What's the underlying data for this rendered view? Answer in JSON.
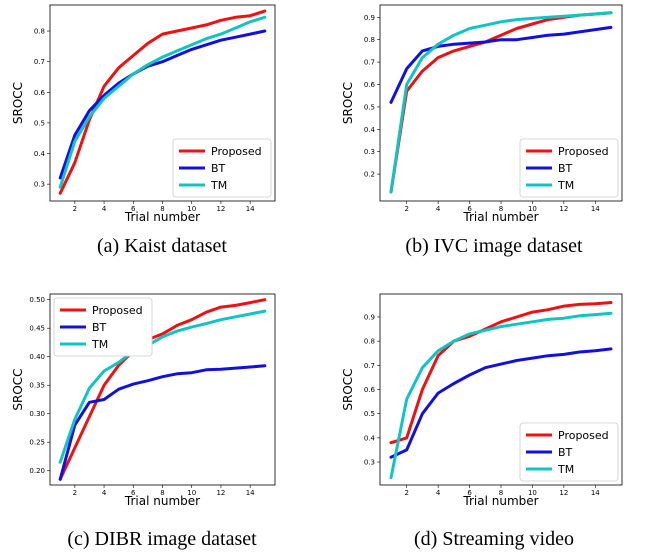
{
  "chart_data": [
    {
      "type": "line",
      "caption": "(a) Kaist dataset",
      "xlabel": "Trial number",
      "ylabel": "SROCC",
      "xlim": [
        0.3,
        15.7
      ],
      "ylim": [
        0.245,
        0.885
      ],
      "xticks": [
        2,
        4,
        6,
        8,
        10,
        12,
        14
      ],
      "yticks": [
        0.3,
        0.4,
        0.5,
        0.6,
        0.7,
        0.8
      ],
      "x": [
        1,
        2,
        3,
        4,
        5,
        6,
        7,
        8,
        9,
        10,
        11,
        12,
        13,
        14,
        15
      ],
      "legend_position": "lower-right",
      "series": [
        {
          "name": "Proposed",
          "color": "#ee1111",
          "values": [
            0.27,
            0.37,
            0.51,
            0.62,
            0.68,
            0.72,
            0.76,
            0.79,
            0.8,
            0.81,
            0.82,
            0.835,
            0.845,
            0.85,
            0.865
          ]
        },
        {
          "name": "BT",
          "color": "#1111dd",
          "values": [
            0.32,
            0.46,
            0.54,
            0.59,
            0.63,
            0.66,
            0.685,
            0.7,
            0.72,
            0.74,
            0.755,
            0.77,
            0.78,
            0.79,
            0.8
          ]
        },
        {
          "name": "TM",
          "color": "#11c4c4",
          "values": [
            0.29,
            0.44,
            0.52,
            0.58,
            0.62,
            0.66,
            0.69,
            0.715,
            0.735,
            0.755,
            0.775,
            0.79,
            0.81,
            0.83,
            0.845
          ]
        }
      ]
    },
    {
      "type": "line",
      "caption": "(b) IVC image dataset",
      "xlabel": "Trial number",
      "ylabel": "SROCC",
      "xlim": [
        0.3,
        15.7
      ],
      "ylim": [
        0.08,
        0.955
      ],
      "xticks": [
        2,
        4,
        6,
        8,
        10,
        12,
        14
      ],
      "yticks": [
        0.2,
        0.3,
        0.4,
        0.5,
        0.6,
        0.7,
        0.8,
        0.9
      ],
      "x": [
        1,
        2,
        3,
        4,
        5,
        6,
        7,
        8,
        9,
        10,
        11,
        12,
        13,
        14,
        15
      ],
      "legend_position": "lower-right",
      "series": [
        {
          "name": "Proposed",
          "color": "#ee1111",
          "values": [
            0.12,
            0.57,
            0.66,
            0.72,
            0.75,
            0.77,
            0.79,
            0.82,
            0.85,
            0.87,
            0.89,
            0.9,
            0.91,
            0.915,
            0.92
          ]
        },
        {
          "name": "BT",
          "color": "#1111dd",
          "values": [
            0.52,
            0.67,
            0.75,
            0.77,
            0.78,
            0.785,
            0.79,
            0.8,
            0.8,
            0.81,
            0.82,
            0.825,
            0.835,
            0.845,
            0.855
          ]
        },
        {
          "name": "TM",
          "color": "#11c4c4",
          "values": [
            0.12,
            0.6,
            0.72,
            0.78,
            0.82,
            0.85,
            0.865,
            0.88,
            0.89,
            0.895,
            0.9,
            0.905,
            0.91,
            0.915,
            0.92
          ]
        }
      ]
    },
    {
      "type": "line",
      "caption": "(c) DIBR image dataset",
      "xlabel": "Trial number",
      "ylabel": "SROCC",
      "xlim": [
        0.3,
        15.7
      ],
      "ylim": [
        0.175,
        0.51
      ],
      "xticks": [
        2,
        4,
        6,
        8,
        10,
        12,
        14
      ],
      "yticks": [
        0.2,
        0.25,
        0.3,
        0.35,
        0.4,
        0.45,
        0.5
      ],
      "x": [
        1,
        2,
        3,
        4,
        5,
        6,
        7,
        8,
        9,
        10,
        11,
        12,
        13,
        14,
        15
      ],
      "legend_position": "upper-left",
      "series": [
        {
          "name": "Proposed",
          "color": "#ee1111",
          "values": [
            0.185,
            0.24,
            0.295,
            0.35,
            0.385,
            0.41,
            0.43,
            0.44,
            0.455,
            0.465,
            0.478,
            0.487,
            0.49,
            0.495,
            0.5
          ]
        },
        {
          "name": "BT",
          "color": "#1111dd",
          "values": [
            0.185,
            0.28,
            0.32,
            0.325,
            0.343,
            0.352,
            0.358,
            0.365,
            0.37,
            0.372,
            0.377,
            0.378,
            0.38,
            0.382,
            0.384
          ]
        },
        {
          "name": "TM",
          "color": "#11c4c4",
          "values": [
            0.215,
            0.29,
            0.345,
            0.375,
            0.39,
            0.41,
            0.42,
            0.435,
            0.445,
            0.452,
            0.458,
            0.465,
            0.47,
            0.475,
            0.48
          ]
        }
      ]
    },
    {
      "type": "line",
      "caption": "(d) Streaming video",
      "xlabel": "Trial number",
      "ylabel": "SROCC",
      "xlim": [
        0.3,
        15.7
      ],
      "ylim": [
        0.205,
        0.995
      ],
      "xticks": [
        2,
        4,
        6,
        8,
        10,
        12,
        14
      ],
      "yticks": [
        0.3,
        0.4,
        0.5,
        0.6,
        0.7,
        0.8,
        0.9
      ],
      "x": [
        1,
        2,
        3,
        4,
        5,
        6,
        7,
        8,
        9,
        10,
        11,
        12,
        13,
        14,
        15
      ],
      "legend_position": "lower-right",
      "series": [
        {
          "name": "Proposed",
          "color": "#ee1111",
          "values": [
            0.38,
            0.4,
            0.6,
            0.74,
            0.8,
            0.82,
            0.85,
            0.88,
            0.9,
            0.92,
            0.93,
            0.945,
            0.952,
            0.955,
            0.96
          ]
        },
        {
          "name": "BT",
          "color": "#1111dd",
          "values": [
            0.32,
            0.35,
            0.5,
            0.585,
            0.625,
            0.66,
            0.69,
            0.705,
            0.72,
            0.73,
            0.74,
            0.745,
            0.755,
            0.76,
            0.768
          ]
        },
        {
          "name": "TM",
          "color": "#11c4c4",
          "values": [
            0.235,
            0.56,
            0.69,
            0.76,
            0.8,
            0.83,
            0.845,
            0.86,
            0.87,
            0.88,
            0.89,
            0.895,
            0.905,
            0.91,
            0.915
          ]
        }
      ]
    }
  ]
}
